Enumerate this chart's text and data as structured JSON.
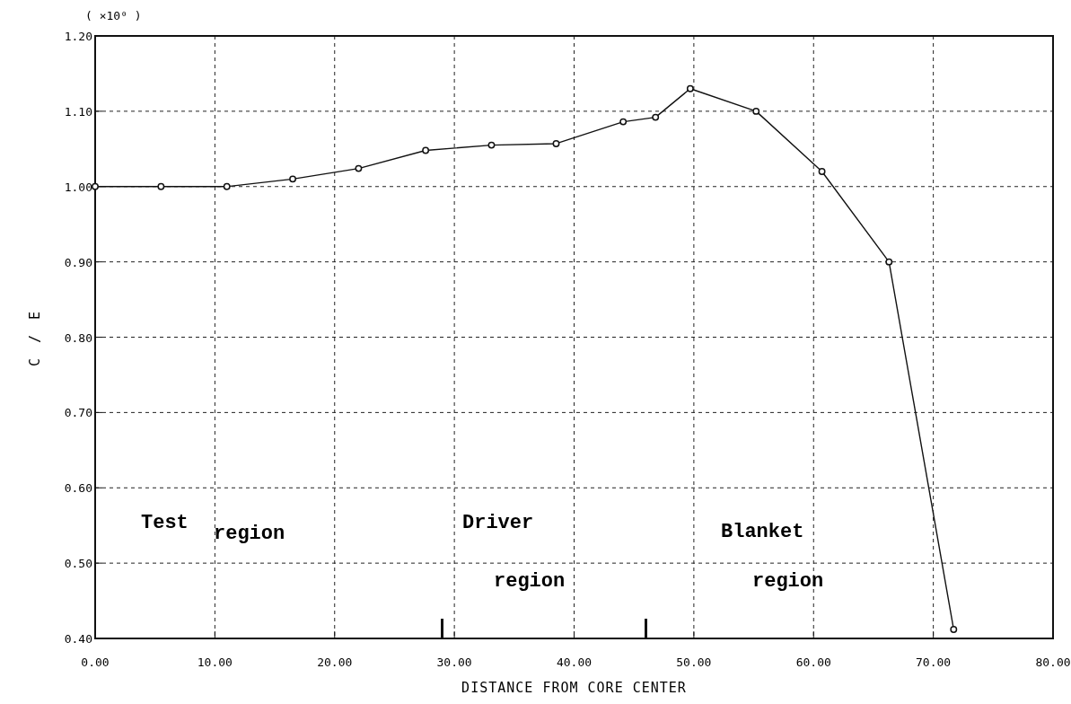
{
  "chart_data": {
    "type": "line",
    "xlabel": "DISTANCE FROM CORE CENTER",
    "ylabel": "C / E",
    "x": [
      0,
      5.5,
      11.0,
      16.5,
      22.0,
      27.6,
      33.1,
      38.5,
      44.1,
      46.8,
      49.7,
      55.2,
      60.7,
      66.3,
      71.7
    ],
    "series": [
      {
        "color": "#111111",
        "values": [
          1.0,
          1.0,
          1.0,
          1.01,
          1.024,
          1.048,
          1.055,
          1.057,
          1.086,
          1.092,
          1.13,
          1.1,
          1.02,
          0.9,
          0.412
        ]
      }
    ],
    "xlim": [
      0,
      80
    ],
    "ylim": [
      0.4,
      1.2
    ],
    "xticks": [
      {
        "value": 0,
        "label": "0.00"
      },
      {
        "value": 10,
        "label": "10.00"
      },
      {
        "value": 20,
        "label": "20.00"
      },
      {
        "value": 30,
        "label": "30.00"
      },
      {
        "value": 40,
        "label": "40.00"
      },
      {
        "value": 50,
        "label": "50.00"
      },
      {
        "value": 60,
        "label": "60.00"
      },
      {
        "value": 70,
        "label": "70.00"
      },
      {
        "value": 80,
        "label": "80.00"
      }
    ],
    "yticks": [
      {
        "value": 0.4,
        "label": "0.40"
      },
      {
        "value": 0.5,
        "label": "0.50"
      },
      {
        "value": 0.6,
        "label": "0.60"
      },
      {
        "value": 0.7,
        "label": "0.70"
      },
      {
        "value": 0.8,
        "label": "0.80"
      },
      {
        "value": 0.9,
        "label": "0.90"
      },
      {
        "value": 1.0,
        "label": "1.00"
      },
      {
        "value": 1.1,
        "label": "1.10"
      },
      {
        "value": 1.2,
        "label": "1.20"
      }
    ],
    "grid": true,
    "marker": "circle",
    "line_style": "solid",
    "annotations": [
      "( ×10⁰ )",
      "Test",
      "region",
      "Driver",
      "region",
      "Blanket",
      "region"
    ]
  }
}
